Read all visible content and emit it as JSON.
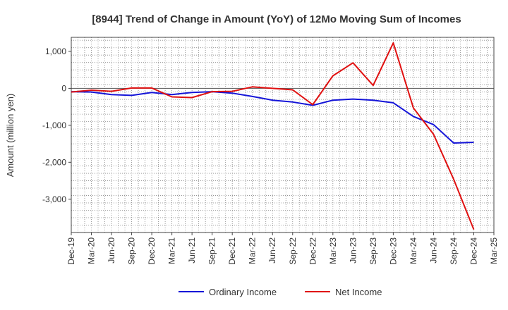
{
  "chart_data": {
    "type": "line",
    "title": "[8944]  Trend of Change in Amount (YoY) of 12Mo Moving Sum of Incomes",
    "xlabel": "",
    "ylabel": "Amount (million yen)",
    "categories": [
      "Dec-19",
      "Mar-20",
      "Jun-20",
      "Sep-20",
      "Dec-20",
      "Mar-21",
      "Jun-21",
      "Sep-21",
      "Dec-21",
      "Mar-22",
      "Jun-22",
      "Sep-22",
      "Dec-22",
      "Mar-23",
      "Jun-23",
      "Sep-23",
      "Dec-23",
      "Mar-24",
      "Jun-24",
      "Sep-24",
      "Dec-24",
      "Mar-25"
    ],
    "y_ticks": [
      1000,
      0,
      -1000,
      -2000,
      -3000
    ],
    "y_tick_labels": [
      "1,000",
      "0",
      "-1,000",
      "-2,000",
      "-3,000"
    ],
    "ylim": [
      -3900,
      1380
    ],
    "grid": true,
    "legend_position": "bottom",
    "series": [
      {
        "name": "Ordinary Income",
        "color": "#1515d8",
        "values": [
          -90,
          -100,
          -170,
          -190,
          -110,
          -170,
          -110,
          -90,
          -130,
          -220,
          -320,
          -370,
          -460,
          -320,
          -290,
          -320,
          -390,
          -760,
          -980,
          -1480,
          -1460,
          null
        ]
      },
      {
        "name": "Net Income",
        "color": "#e01010",
        "values": [
          -100,
          -50,
          -80,
          10,
          10,
          -230,
          -250,
          -90,
          -80,
          40,
          0,
          -40,
          -440,
          340,
          690,
          80,
          1230,
          -530,
          -1240,
          -2460,
          -3820,
          null
        ]
      }
    ]
  }
}
